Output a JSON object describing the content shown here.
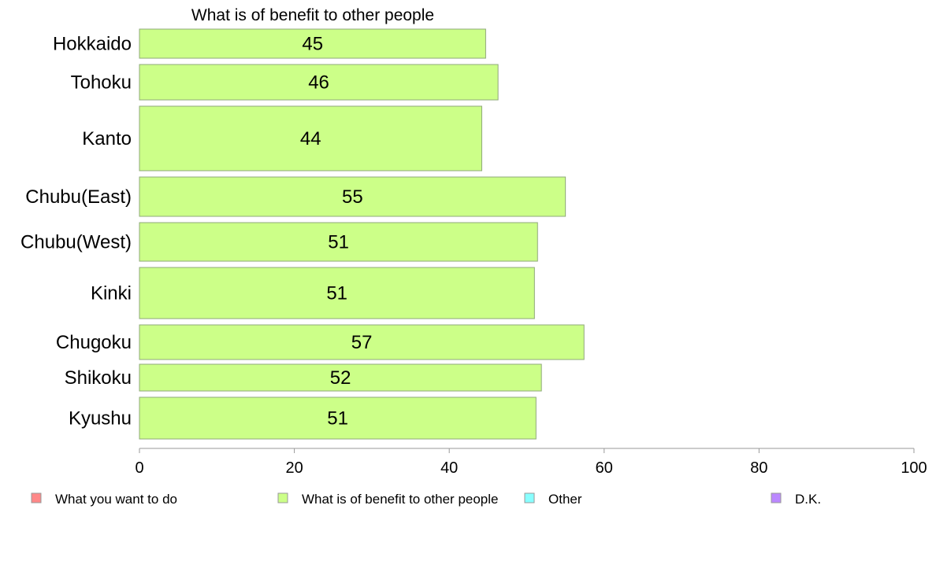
{
  "chart_data": {
    "type": "bar",
    "orientation": "horizontal",
    "title": "What is of benefit to other people",
    "xlabel": "",
    "ylabel": "",
    "xlim": [
      0,
      100
    ],
    "xticks": [
      "0",
      "20",
      "40",
      "60",
      "80",
      "100"
    ],
    "categories": [
      "Hokkaido",
      "Tohoku",
      "Kanto",
      "Chubu(East)",
      "Chubu(West)",
      "Kinki",
      "Chugoku",
      "Shikoku",
      "Kyushu"
    ],
    "values": [
      44.7,
      46.3,
      44.2,
      55.0,
      51.4,
      51.0,
      57.4,
      51.9,
      51.2
    ],
    "value_labels": [
      "45",
      "46",
      "44",
      "55",
      "51",
      "51",
      "57",
      "52",
      "51"
    ],
    "bar_color": "#ccff88",
    "grid": false,
    "legend_position": "bottom",
    "legend": [
      {
        "label": "What you want to do",
        "color": "#ff8888"
      },
      {
        "label": "What is of benefit to other people",
        "color": "#ccff88"
      },
      {
        "label": "Other",
        "color": "#88ffff"
      },
      {
        "label": "D.K.",
        "color": "#bb88ff"
      }
    ]
  }
}
